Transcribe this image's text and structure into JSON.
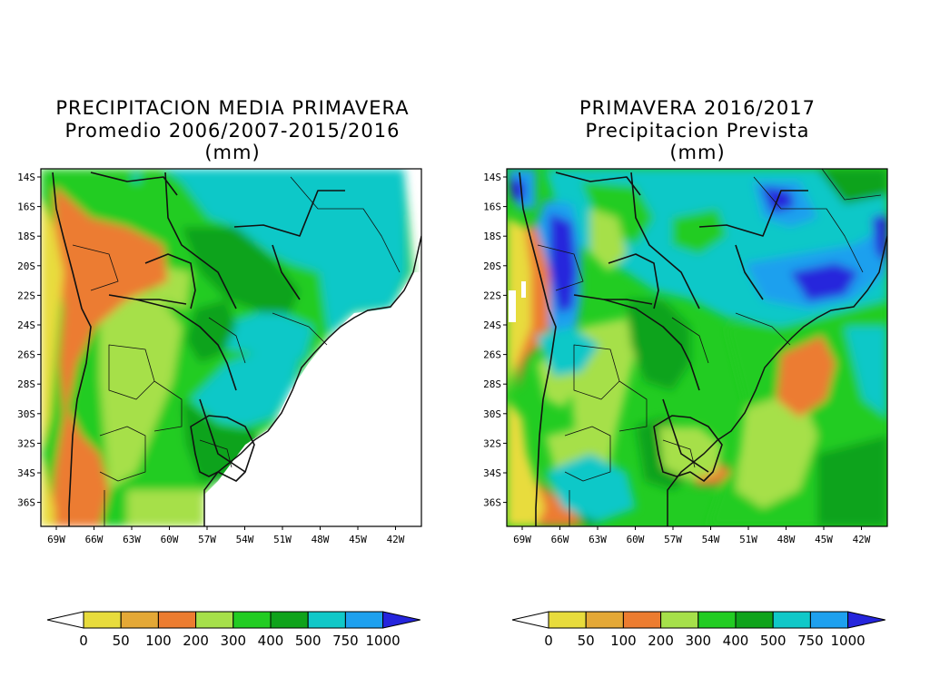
{
  "colors": {
    "c0": "#e8dc3c",
    "c50": "#e4a836",
    "c100": "#ec7c30",
    "c200": "#a6e04a",
    "c300": "#22cc22",
    "c400": "#0fa31b",
    "c500": "#10c8c8",
    "c750": "#1ea0ee",
    "c1000": "#2525dc",
    "land_border": "#111111"
  },
  "left_map": {
    "title_line1": "PRECIPITACION MEDIA PRIMAVERA",
    "title_line2": "Promedio 2006/2007-2015/2016",
    "title_line3": "(mm)"
  },
  "right_map": {
    "title_line1": "PRIMAVERA 2016/2017",
    "title_line2": "Precipitacion Prevista",
    "title_line3": "(mm)"
  },
  "lat_labels": [
    "14S",
    "16S",
    "18S",
    "20S",
    "22S",
    "24S",
    "26S",
    "28S",
    "30S",
    "32S",
    "34S",
    "36S"
  ],
  "lon_labels": [
    "69W",
    "66W",
    "63W",
    "60W",
    "57W",
    "54W",
    "51W",
    "48W",
    "45W",
    "42W"
  ],
  "colorbar": {
    "labels": [
      "0",
      "50",
      "100",
      "200",
      "300",
      "400",
      "500",
      "750",
      "1000"
    ],
    "bins": [
      "c0",
      "c50",
      "c100",
      "c200",
      "c300",
      "c400",
      "c500",
      "c750",
      "c1000"
    ]
  }
}
